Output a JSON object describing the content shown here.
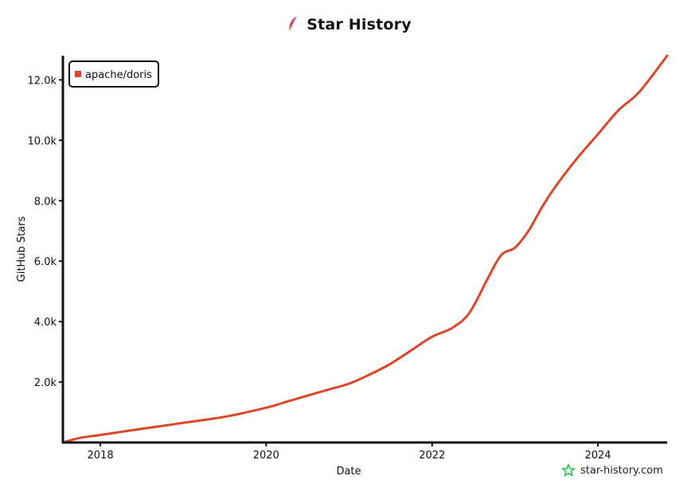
{
  "colors": {
    "series": "#dd4528",
    "axis": "#111111",
    "logo": "#27c24c",
    "feather": "#e0447a"
  },
  "icons": {
    "title_icon": "feather-icon",
    "watermark_icon": "star-outline-icon"
  },
  "header": {
    "title": "Star History"
  },
  "watermark": {
    "text": "star-history.com"
  },
  "chart_data": {
    "type": "line",
    "title": "Star History",
    "xlabel": "Date",
    "ylabel": "GitHub Stars",
    "ylim": [
      0,
      12800
    ],
    "xlim": [
      "2017-07-20",
      "2024-11-01"
    ],
    "y_ticks": [
      {
        "value": 2000,
        "label": "2.0k"
      },
      {
        "value": 4000,
        "label": "4.0k"
      },
      {
        "value": 6000,
        "label": "6.0k"
      },
      {
        "value": 8000,
        "label": "8.0k"
      },
      {
        "value": 10000,
        "label": "10.0k"
      },
      {
        "value": 12000,
        "label": "12.0k"
      }
    ],
    "x_ticks": [
      {
        "value": "2018-01-01",
        "label": "2018"
      },
      {
        "value": "2020-01-01",
        "label": "2020"
      },
      {
        "value": "2022-01-01",
        "label": "2022"
      },
      {
        "value": "2024-01-01",
        "label": "2024"
      }
    ],
    "legend": {
      "position": "top-left"
    },
    "grid": false,
    "series": [
      {
        "name": "apache/doris",
        "points": [
          [
            "2017-07-20",
            0
          ],
          [
            "2017-10-01",
            150
          ],
          [
            "2018-01-01",
            250
          ],
          [
            "2018-04-01",
            350
          ],
          [
            "2018-07-01",
            450
          ],
          [
            "2019-01-01",
            650
          ],
          [
            "2019-07-01",
            850
          ],
          [
            "2020-01-01",
            1150
          ],
          [
            "2020-04-01",
            1350
          ],
          [
            "2020-07-01",
            1550
          ],
          [
            "2020-10-01",
            1750
          ],
          [
            "2021-01-01",
            1950
          ],
          [
            "2021-04-01",
            2250
          ],
          [
            "2021-07-01",
            2600
          ],
          [
            "2021-10-01",
            3050
          ],
          [
            "2022-01-01",
            3500
          ],
          [
            "2022-04-01",
            3800
          ],
          [
            "2022-06-15",
            4300
          ],
          [
            "2022-09-01",
            5400
          ],
          [
            "2022-11-01",
            6200
          ],
          [
            "2023-01-01",
            6450
          ],
          [
            "2023-03-01",
            7000
          ],
          [
            "2023-05-01",
            7800
          ],
          [
            "2023-07-01",
            8500
          ],
          [
            "2023-10-01",
            9400
          ],
          [
            "2024-01-01",
            10200
          ],
          [
            "2024-04-01",
            11000
          ],
          [
            "2024-07-01",
            11600
          ],
          [
            "2024-11-01",
            12800
          ]
        ]
      }
    ]
  }
}
